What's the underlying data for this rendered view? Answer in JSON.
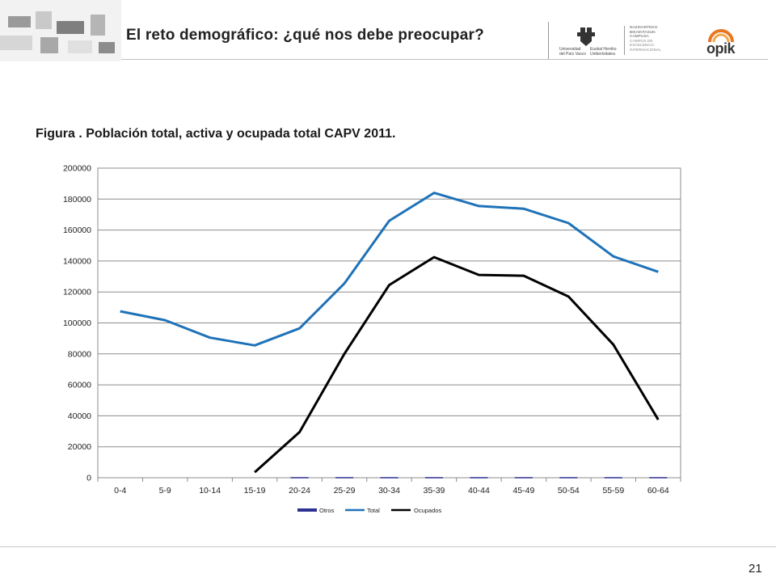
{
  "header": {
    "title": "El reto demográfico: ¿qué nos debe preocupar?",
    "upv_line1": "Universidad",
    "upv_line2": "del País Vasco",
    "ehu_line1": "Euskal Herriko",
    "ehu_line2": "Unibertsitatea",
    "campus_line1": "NAZIOARTEKO",
    "campus_line2": "BIKAINTASUN",
    "campus_line3": "CAMPUSA",
    "campus_line4": "CAMPUS DE",
    "campus_line5": "EXCELENCIA",
    "campus_line6": "INTERNACIONAL",
    "opik_logo": "opik"
  },
  "figure": {
    "title": "Figura . Población total, activa y ocupada total CAPV 2011."
  },
  "page_number": "21",
  "chart_data": {
    "type": "line",
    "title": "",
    "xlabel": "",
    "ylabel": "",
    "categories": [
      "0-4",
      "5-9",
      "10-14",
      "15-19",
      "20-24",
      "25-29",
      "30-34",
      "35-39",
      "40-44",
      "45-49",
      "50-54",
      "55-59",
      "60-64"
    ],
    "ylim": [
      0,
      200000
    ],
    "yticks": [
      "0",
      "20000",
      "40000",
      "60000",
      "80000",
      "100000",
      "120000",
      "140000",
      "160000",
      "180000",
      "200000"
    ],
    "grid": true,
    "legend_position": "bottom",
    "series": [
      {
        "name": "Otros",
        "type": "bar",
        "color": "#2e3192",
        "values": [
          0,
          0,
          0,
          0,
          400,
          400,
          400,
          400,
          400,
          400,
          400,
          400,
          400
        ]
      },
      {
        "name": "Total",
        "type": "line",
        "color": "#1f72b8",
        "values": [
          107500,
          101800,
          90500,
          85500,
          96500,
          125500,
          166000,
          184000,
          175500,
          173800,
          164500,
          143000,
          133000
        ]
      },
      {
        "name": "Ocupados",
        "type": "line",
        "color": "#000000",
        "values": [
          null,
          null,
          null,
          3500,
          29500,
          80000,
          124500,
          142500,
          131000,
          130500,
          117000,
          86000,
          37500
        ]
      }
    ]
  }
}
